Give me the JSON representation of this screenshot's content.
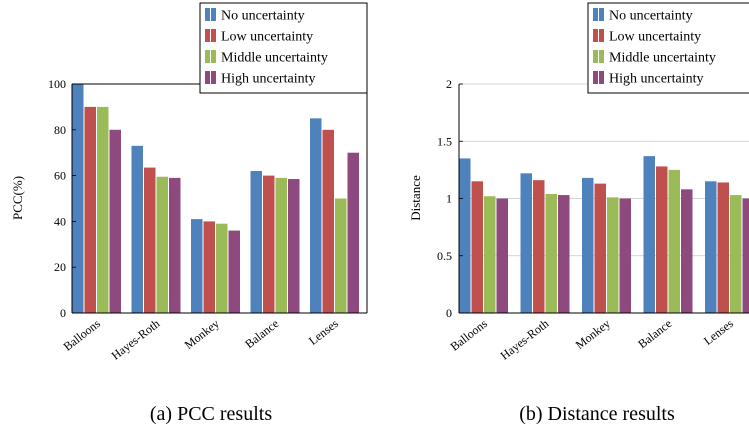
{
  "charts": [
    {
      "caption": "(a)  PCC results",
      "chart_data": {
        "type": "bar",
        "categories": [
          "Balloons",
          "Hayes-Roth",
          "Monkey",
          "Balance",
          "Lenses"
        ],
        "series": [
          {
            "name": "No uncertainty",
            "color": "#4f81bd",
            "values": [
              100,
              73,
              41,
              62,
              85
            ]
          },
          {
            "name": "Low uncertainty",
            "color": "#c0504d",
            "values": [
              90,
              63.5,
              40,
              60,
              80
            ]
          },
          {
            "name": "Middle uncertainty",
            "color": "#9bbb59",
            "values": [
              90,
              59.5,
              39,
              59,
              50
            ]
          },
          {
            "name": "High uncertainty",
            "color": "#8e4a7e",
            "values": [
              80,
              59,
              36,
              58.5,
              70
            ]
          }
        ],
        "xlabel": "",
        "ylabel": "PCC(%)",
        "ylim": [
          0,
          100
        ],
        "yticks": [
          "0",
          "20",
          "40",
          "60",
          "80",
          "100"
        ],
        "grid": false,
        "legend_position": "top-right"
      }
    },
    {
      "caption": "(b)  Distance results",
      "chart_data": {
        "type": "bar",
        "categories": [
          "Balloons",
          "Hayes-Roth",
          "Monkey",
          "Balance",
          "Lenses"
        ],
        "series": [
          {
            "name": "No uncertainty",
            "color": "#4f81bd",
            "values": [
              1.35,
              1.22,
              1.18,
              1.37,
              1.15
            ]
          },
          {
            "name": "Low uncertainty",
            "color": "#c0504d",
            "values": [
              1.15,
              1.16,
              1.13,
              1.28,
              1.14
            ]
          },
          {
            "name": "Middle uncertainty",
            "color": "#9bbb59",
            "values": [
              1.02,
              1.04,
              1.01,
              1.25,
              1.03
            ]
          },
          {
            "name": "High uncertainty",
            "color": "#8e4a7e",
            "values": [
              1.0,
              1.03,
              1.0,
              1.08,
              1.0
            ]
          }
        ],
        "xlabel": "",
        "ylabel": "Distance",
        "ylim": [
          0,
          2
        ],
        "yticks": [
          "0",
          "0.5",
          "1",
          "1.5",
          "2"
        ],
        "grid": true,
        "legend_position": "top-right"
      }
    }
  ]
}
